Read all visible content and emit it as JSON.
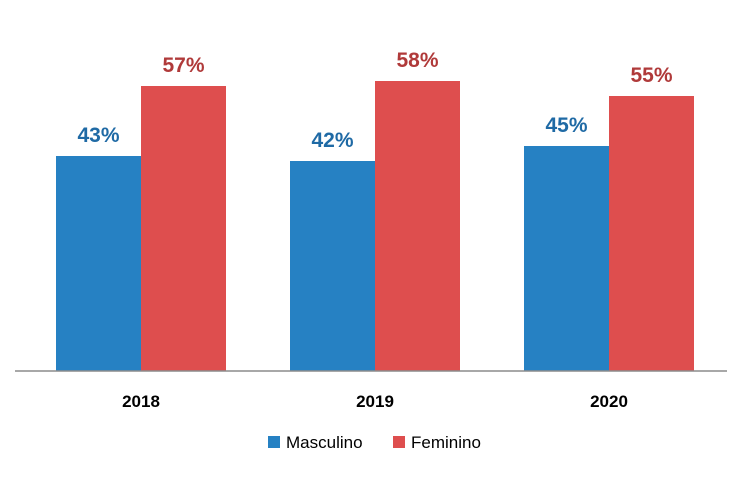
{
  "colors": {
    "masculino": "#2681C3",
    "feminino": "#DE4E4E",
    "masculino_label": "#1F6AA5",
    "feminino_label": "#B03A3A",
    "axis": "#8C8C8C"
  },
  "chart_data": {
    "type": "bar",
    "title": "",
    "xlabel": "",
    "ylabel": "",
    "ylim": [
      0,
      80
    ],
    "grid": false,
    "legend_position": "bottom",
    "categories": [
      "2018",
      "2019",
      "2020"
    ],
    "series": [
      {
        "name": "Masculino",
        "values": [
          43,
          42,
          45
        ],
        "labels": [
          "43%",
          "42%",
          "45%"
        ],
        "color_key": "masculino"
      },
      {
        "name": "Feminino",
        "values": [
          57,
          58,
          55
        ],
        "labels": [
          "57%",
          "58%",
          "55%"
        ],
        "color_key": "feminino"
      }
    ]
  }
}
